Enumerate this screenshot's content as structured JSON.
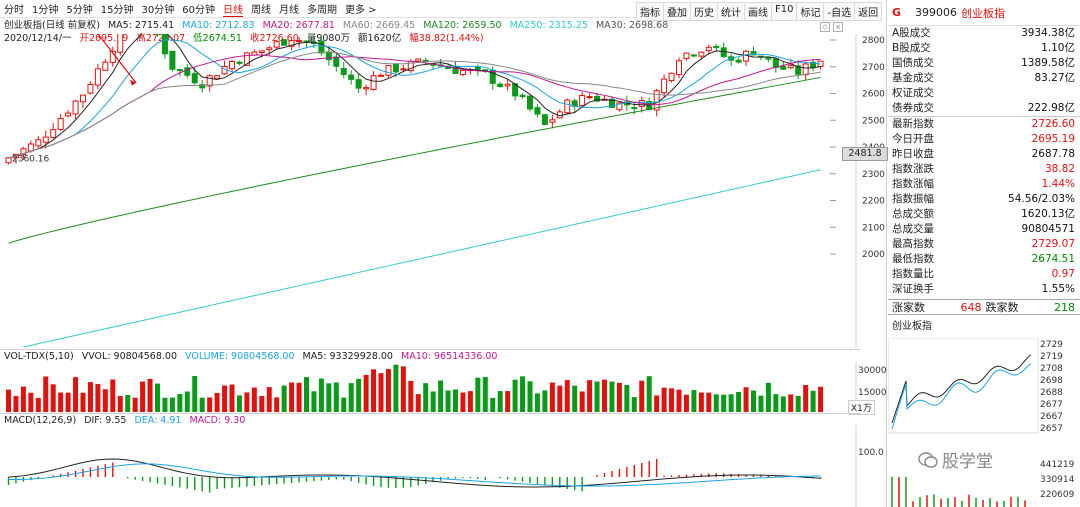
{
  "timeframes": [
    "分时",
    "1分钟",
    "5分钟",
    "15分钟",
    "30分钟",
    "60分钟",
    "日线",
    "周线",
    "月线",
    "多周期",
    "更多 >"
  ],
  "active_timeframe": "日线",
  "tools": [
    "指标",
    "叠加",
    "历史",
    "统计",
    "画线",
    "F10",
    "标记",
    "-自选",
    "返回"
  ],
  "chart_header": {
    "title": "创业板指(日线 前复权)",
    "ma5": "MA5: 2715.41",
    "ma10": "MA10: 2712.83",
    "ma20": "MA20: 2677.81",
    "ma60": "MA60: 2669.45",
    "ma120": "MA120: 2659.50",
    "ma250": "MA250: 2315.25",
    "ma30": "MA30: 2698.68"
  },
  "bar_info": {
    "date": "2020/12/14/一",
    "open": "开2695.19",
    "high": "高2729.07",
    "low": "低2674.51",
    "close": "收2726.60",
    "volume": "量9080万",
    "amount": "额1620亿",
    "change": "幅38.82(1.44%)"
  },
  "price_axis": [
    "2800",
    "2700",
    "2600",
    "2500",
    "2400",
    "2300",
    "2200",
    "2100",
    "2000"
  ],
  "annotations": {
    "high": "2896.31",
    "low": "2360.16"
  },
  "last_price_box": "2481.8",
  "volume_panel": {
    "title": "VOL-TDX(5,10)",
    "vvol": "VVOL: 90804568.00",
    "volume": "VOLUME: 90804568.00",
    "ma5": "MA5: 93329928.00",
    "ma10": "MA10: 96514336.00",
    "axis": [
      "30000",
      "15000"
    ],
    "unit": "X1万"
  },
  "macd_panel": {
    "title": "MACD(12,26,9)",
    "dif": "DIF: 9.55",
    "dea": "DEA: 4.91",
    "macd": "MACD: 9.30",
    "axis": "100.0"
  },
  "quote": {
    "badge": "G",
    "code": "399006",
    "name": "创业板指",
    "rows_top": [
      {
        "label": "A股成交",
        "value": "3934.38亿",
        "color": "blk"
      },
      {
        "label": "B股成交",
        "value": "1.10亿",
        "color": "blk"
      },
      {
        "label": "国债成交",
        "value": "1389.58亿",
        "color": "blk"
      },
      {
        "label": "基金成交",
        "value": "83.27亿",
        "color": "blk"
      },
      {
        "label": "权证成交",
        "value": "",
        "color": "blk"
      },
      {
        "label": "债券成交",
        "value": "222.98亿",
        "color": "blk"
      }
    ],
    "rows_main": [
      {
        "label": "最新指数",
        "value": "2726.60",
        "color": "red"
      },
      {
        "label": "今日开盘",
        "value": "2695.19",
        "color": "red"
      },
      {
        "label": "昨日收盘",
        "value": "2687.78",
        "color": "blk"
      },
      {
        "label": "指数涨跌",
        "value": "38.82",
        "color": "red"
      },
      {
        "label": "指数涨幅",
        "value": "1.44%",
        "color": "red"
      },
      {
        "label": "指数振幅",
        "value": "54.56/2.03%",
        "color": "blk"
      },
      {
        "label": "总成交额",
        "value": "1620.13亿",
        "color": "blk"
      },
      {
        "label": "总成交量",
        "value": "90804571",
        "color": "blk"
      },
      {
        "label": "最高指数",
        "value": "2729.07",
        "color": "red"
      },
      {
        "label": "最低指数",
        "value": "2674.51",
        "color": "green"
      },
      {
        "label": "指数量比",
        "value": "0.97",
        "color": "red"
      },
      {
        "label": "深证换手",
        "value": "1.55%",
        "color": "blk"
      }
    ],
    "up_label": "涨家数",
    "up_count": "648",
    "down_label": "跌家数",
    "down_count": "218"
  },
  "mini_chart": {
    "title": "创业板指",
    "price_ticks": [
      "2729",
      "2719",
      "2708",
      "2698",
      "2688",
      "2677",
      "2667",
      "2657"
    ],
    "volume_ticks": [
      "441219",
      "330914",
      "220609"
    ]
  },
  "watermark": "股学堂",
  "colors": {
    "up": "#e0120d",
    "down": "#0a9a1a",
    "ma5": "#222222",
    "ma10": "#1aa3e8",
    "ma20": "#c01790",
    "ma30": "#888888",
    "ma120": "#1f8a1f",
    "ma250": "#33cccc"
  }
}
